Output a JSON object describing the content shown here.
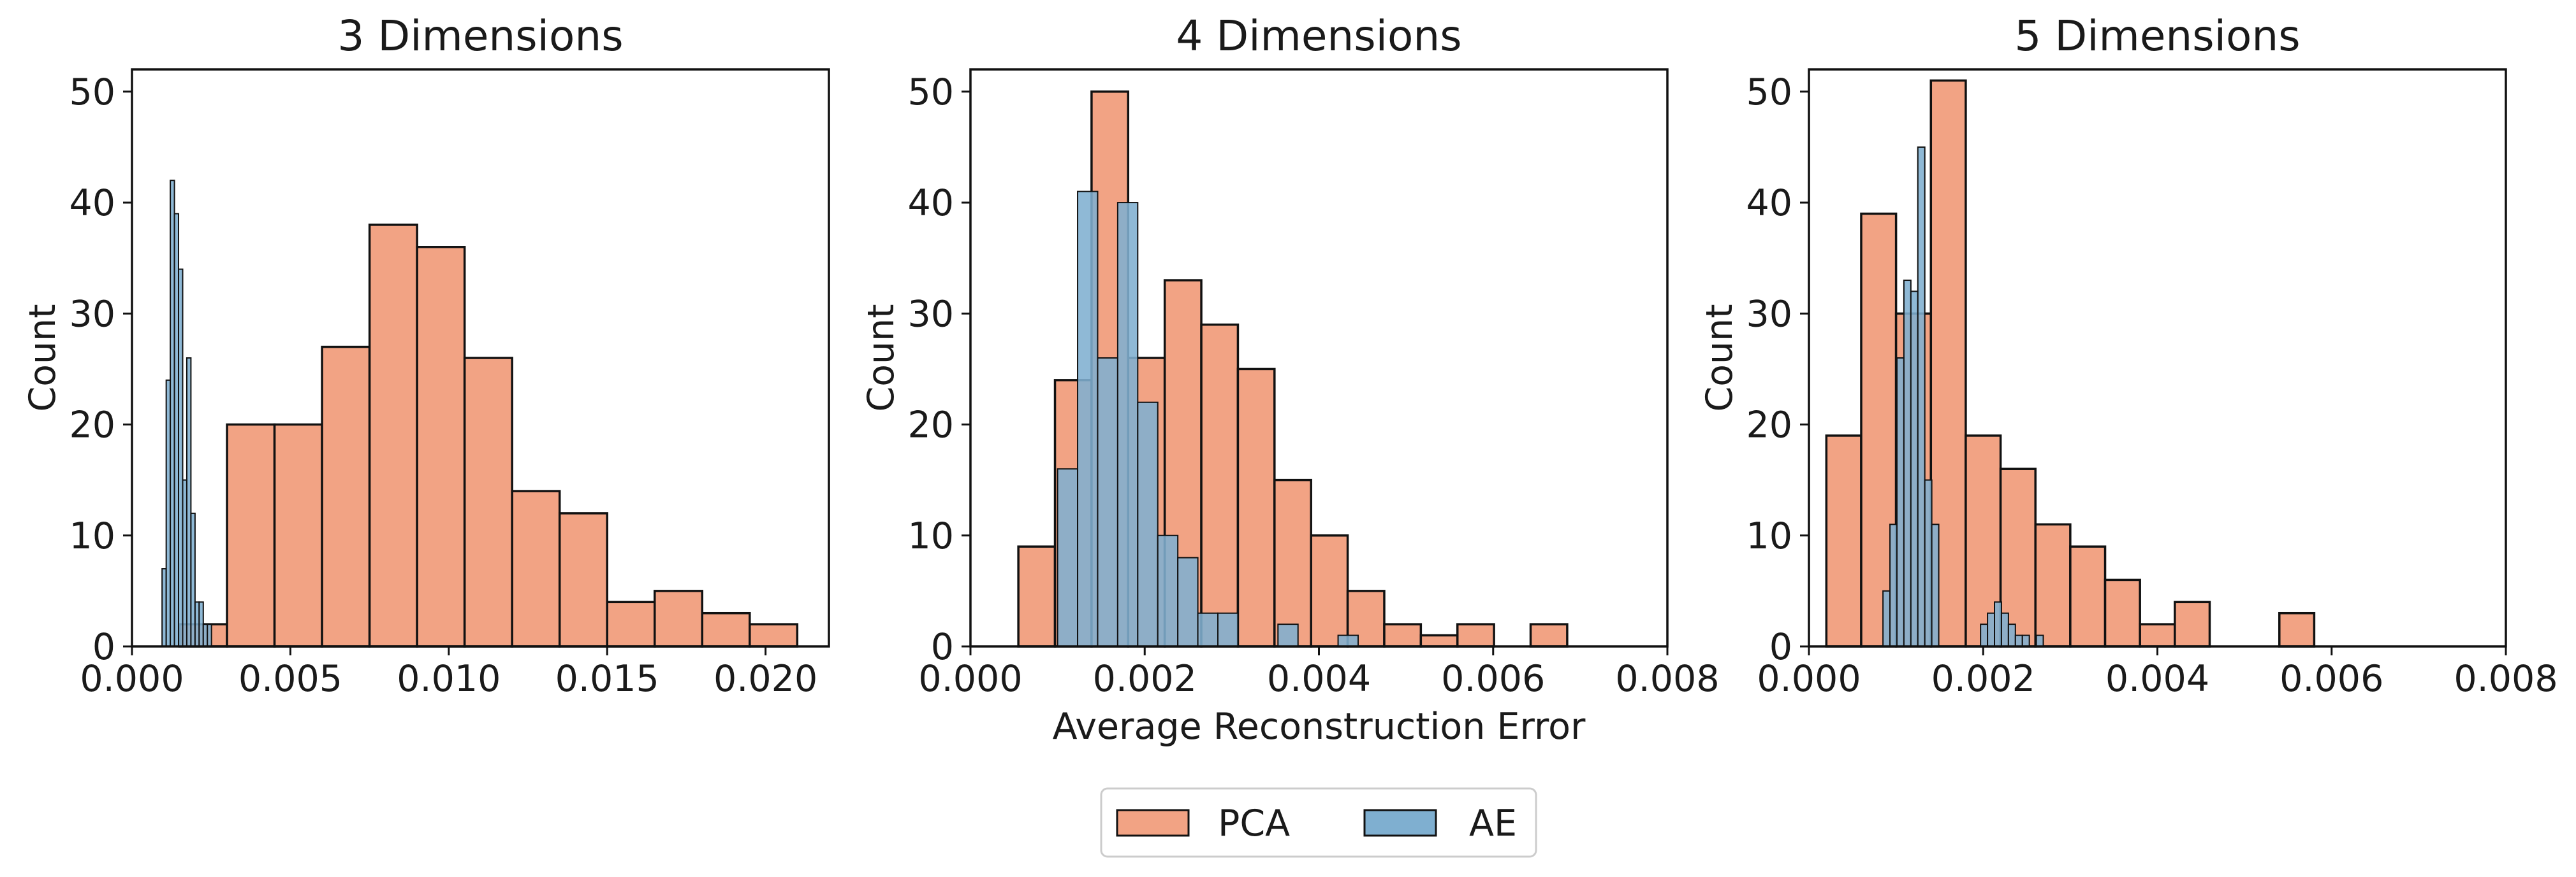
{
  "colors": {
    "pca": "#F2A384",
    "ae": "#7FAFD0",
    "edge": "#111111",
    "axis": "#111111"
  },
  "legend": {
    "placement": "bottom-center",
    "items": [
      {
        "label": "PCA",
        "color": "#F2A384"
      },
      {
        "label": "AE",
        "color": "#7FAFD0"
      }
    ]
  },
  "chart_data": [
    {
      "type": "histogram",
      "title": "3 Dimensions",
      "xlabel": "",
      "ylabel": "Count",
      "xlim": [
        0,
        0.022
      ],
      "ylim": [
        0,
        52
      ],
      "xticks": [
        0,
        0.005,
        0.01,
        0.015,
        0.02
      ],
      "xtick_labels": [
        "0.000",
        "0.005",
        "0.010",
        "0.015",
        "0.020"
      ],
      "yticks": [
        0,
        10,
        20,
        30,
        40,
        50
      ],
      "ytick_labels": [
        "0",
        "10",
        "20",
        "30",
        "40",
        "50"
      ],
      "series": [
        {
          "name": "PCA",
          "bin_start": 0.0015,
          "bin_width": 0.0015,
          "counts": [
            2,
            20,
            20,
            27,
            38,
            36,
            26,
            14,
            12,
            4,
            5,
            3,
            2
          ]
        },
        {
          "name": "AE",
          "bin_start": 0.00095,
          "bin_width": 0.00013,
          "counts": [
            7,
            24,
            42,
            39,
            34,
            15,
            26,
            12,
            4,
            4,
            2,
            2
          ]
        }
      ]
    },
    {
      "type": "histogram",
      "title": "4 Dimensions",
      "xlabel": "Average Reconstruction Error",
      "ylabel": "Count",
      "xlim": [
        0,
        0.008
      ],
      "ylim": [
        0,
        52
      ],
      "xticks": [
        0,
        0.002,
        0.004,
        0.006,
        0.008
      ],
      "xtick_labels": [
        "0.000",
        "0.002",
        "0.004",
        "0.006",
        "0.008"
      ],
      "yticks": [
        0,
        10,
        20,
        30,
        40,
        50
      ],
      "ytick_labels": [
        "0",
        "10",
        "20",
        "30",
        "40",
        "50"
      ],
      "series": [
        {
          "name": "PCA",
          "bin_start": 0.00055,
          "bin_width": 0.00042,
          "counts": [
            9,
            24,
            50,
            26,
            33,
            29,
            25,
            15,
            10,
            5,
            2,
            1,
            2,
            0,
            2
          ]
        },
        {
          "name": "AE",
          "bin_start": 0.001,
          "bin_width": 0.00023,
          "counts": [
            16,
            41,
            26,
            40,
            22,
            10,
            8,
            3,
            3,
            0,
            0,
            2,
            0,
            0,
            1
          ]
        }
      ]
    },
    {
      "type": "histogram",
      "title": "5 Dimensions",
      "xlabel": "",
      "ylabel": "Count",
      "xlim": [
        0,
        0.008
      ],
      "ylim": [
        0,
        52
      ],
      "xticks": [
        0,
        0.002,
        0.004,
        0.006,
        0.008
      ],
      "xtick_labels": [
        "0.000",
        "0.002",
        "0.004",
        "0.006",
        "0.008"
      ],
      "yticks": [
        0,
        10,
        20,
        30,
        40,
        50
      ],
      "ytick_labels": [
        "0",
        "10",
        "20",
        "30",
        "40",
        "50"
      ],
      "series": [
        {
          "name": "PCA",
          "bin_start": 0.0002,
          "bin_width": 0.0004,
          "counts": [
            19,
            39,
            30,
            51,
            19,
            16,
            11,
            9,
            6,
            2,
            4,
            0,
            0,
            3
          ]
        },
        {
          "name": "AE",
          "bin_start": 0.00085,
          "bin_width": 8e-05,
          "counts": [
            5,
            11,
            26,
            33,
            32,
            45,
            15,
            11,
            0,
            0,
            0,
            0,
            0,
            0,
            2,
            3,
            4,
            3,
            2,
            1,
            1,
            0,
            1
          ]
        }
      ]
    }
  ]
}
